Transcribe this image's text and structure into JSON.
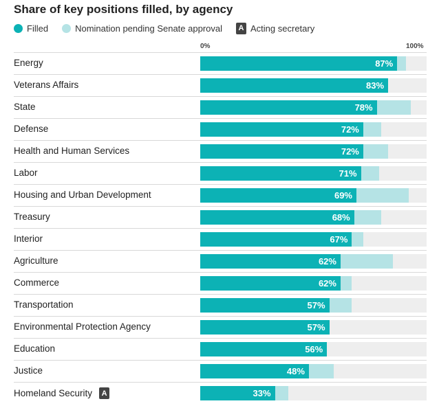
{
  "chart_data": {
    "type": "bar",
    "title": "Share of key positions filled, by agency",
    "legend": {
      "filled": "Filled",
      "pending": "Nomination pending Senate approval",
      "acting": "Acting secretary",
      "acting_badge": "A"
    },
    "axis": {
      "min_label": "0%",
      "max_label": "100%"
    },
    "xlim": [
      0,
      100
    ],
    "colors": {
      "filled": "#0cb2b5",
      "pending": "#b5e3e5",
      "track": "#eeeeee",
      "badge": "#444444"
    },
    "categories": [
      "Energy",
      "Veterans Affairs",
      "State",
      "Defense",
      "Health and Human Services",
      "Labor",
      "Housing and Urban Development",
      "Treasury",
      "Interior",
      "Agriculture",
      "Commerce",
      "Transportation",
      "Environmental Protection Agency",
      "Education",
      "Justice",
      "Homeland Security"
    ],
    "series": [
      {
        "name": "Filled",
        "values": [
          87,
          83,
          78,
          72,
          72,
          71,
          69,
          68,
          67,
          62,
          62,
          57,
          57,
          56,
          48,
          33
        ]
      },
      {
        "name": "Nomination pending Senate approval",
        "values": [
          4,
          0,
          15,
          8,
          11,
          8,
          23,
          12,
          5,
          23,
          5,
          10,
          0,
          0,
          11,
          6
        ]
      }
    ],
    "value_labels": [
      "87%",
      "83%",
      "78%",
      "72%",
      "72%",
      "71%",
      "69%",
      "68%",
      "67%",
      "62%",
      "62%",
      "57%",
      "57%",
      "56%",
      "48%",
      "33%"
    ],
    "acting_secretary": [
      false,
      false,
      false,
      false,
      false,
      false,
      false,
      false,
      false,
      false,
      false,
      false,
      false,
      false,
      false,
      true
    ]
  }
}
